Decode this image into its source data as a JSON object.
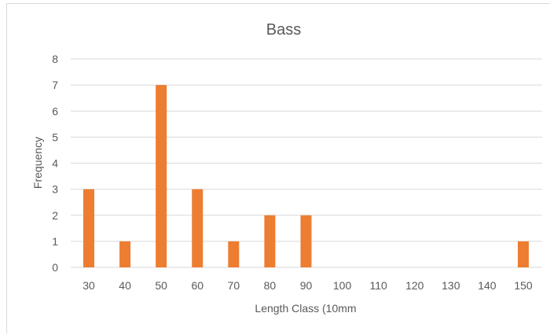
{
  "chart_data": {
    "type": "bar",
    "title": "Bass",
    "xlabel": "Length Class (10mm",
    "ylabel": "Frequency",
    "categories": [
      "30",
      "40",
      "50",
      "60",
      "70",
      "80",
      "90",
      "100",
      "110",
      "120",
      "130",
      "140",
      "150"
    ],
    "values": [
      3,
      1,
      7,
      3,
      1,
      2,
      2,
      0,
      0,
      0,
      0,
      0,
      1
    ],
    "ylim": [
      0,
      8
    ],
    "yticks": [
      "0",
      "1",
      "2",
      "3",
      "4",
      "5",
      "6",
      "7",
      "8"
    ],
    "grid": true,
    "legend": "none",
    "bar_color": "#ED7D31"
  }
}
